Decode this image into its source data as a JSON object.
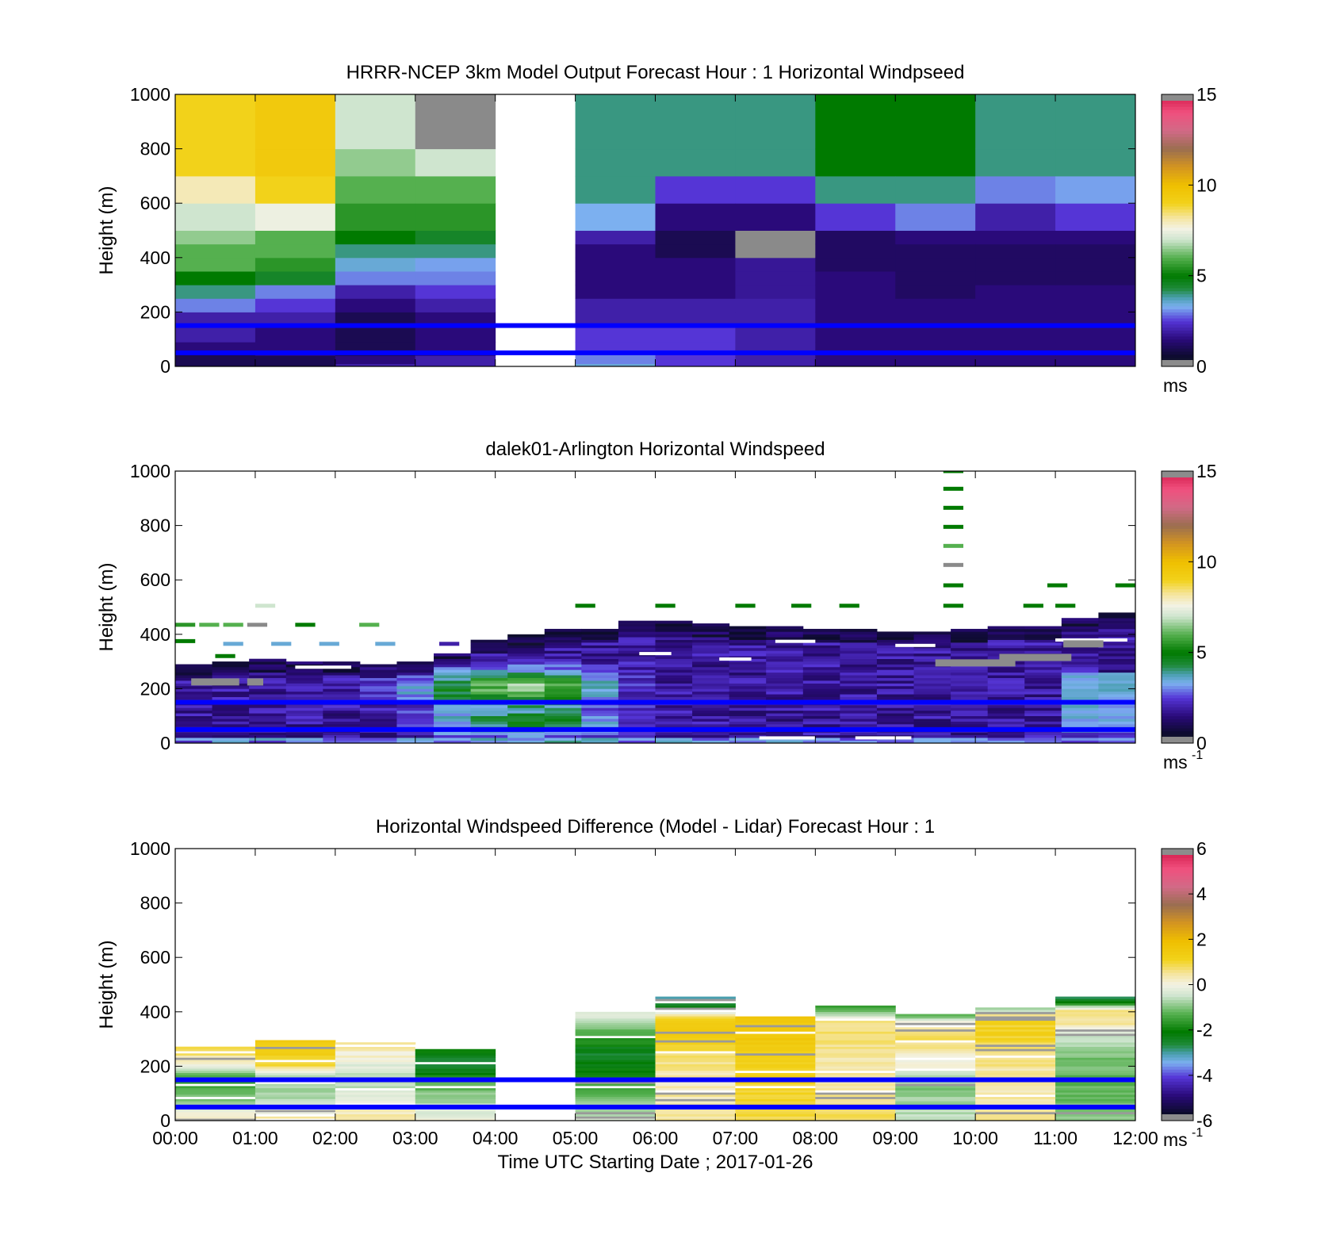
{
  "chart_data": [
    {
      "type": "heatmap",
      "title": "HRRR-NCEP 3km Model Output   Forecast Hour : 1 Horizontal Windpseed",
      "ylabel": "Height (m)",
      "ylim": [
        0,
        1000
      ],
      "yticks": [
        "0",
        "200",
        "400",
        "600",
        "800",
        "1000"
      ],
      "xlim": [
        0,
        12
      ],
      "colorbar": {
        "range": [
          0,
          15
        ],
        "ticks": [
          "0",
          "5",
          "10",
          "15"
        ],
        "units_label": "ms"
      },
      "reference_lines_m": [
        50,
        150
      ],
      "grid": "off",
      "kind": "blocks",
      "columns": [
        [
          1,
          1,
          1,
          1.5,
          2,
          2,
          3,
          4,
          5,
          6,
          6,
          6.5,
          7,
          8,
          9,
          9
        ],
        [
          1,
          1,
          1.5,
          1.5,
          1.5,
          2,
          2.5,
          3,
          4.5,
          5.5,
          6,
          6,
          7.5,
          9,
          9.5,
          9.5
        ],
        [
          2,
          1.5,
          1,
          1,
          1,
          1,
          1.5,
          2,
          3,
          3.5,
          4,
          5,
          5.5,
          6,
          6.5,
          7
        ],
        [
          2,
          2,
          1.5,
          1.5,
          1.5,
          1.5,
          2,
          2.5,
          3,
          3.2,
          4,
          4.5,
          5.5,
          6,
          7,
          -1
        ],
        [
          null,
          null,
          null,
          null,
          null,
          null,
          null,
          null,
          null,
          null,
          null,
          null,
          null,
          null,
          null,
          null
        ],
        [
          3.5,
          3,
          3,
          2.5,
          2.5,
          2,
          2,
          1.5,
          1.5,
          1.5,
          1.5,
          2,
          3.3,
          4,
          4,
          4
        ],
        [
          2.5,
          2.5,
          2.5,
          2.5,
          2.5,
          2,
          2,
          1.5,
          1.5,
          1.5,
          1,
          1,
          1.5,
          2.5,
          4,
          4
        ],
        [
          2,
          2,
          2,
          2,
          2,
          2,
          2,
          1.8,
          1.8,
          1.8,
          -1,
          -1,
          1.5,
          2.5,
          4,
          4
        ],
        [
          1.5,
          1.5,
          1.5,
          1.5,
          1.5,
          1.5,
          1.5,
          1.5,
          1.5,
          1.2,
          1.2,
          1.2,
          2.5,
          4,
          5,
          5
        ],
        [
          1.5,
          1.5,
          1.5,
          1.5,
          1.5,
          1.5,
          1.5,
          1.2,
          1.2,
          1.2,
          1.2,
          1.5,
          3,
          4,
          5,
          5
        ],
        [
          1.5,
          1.5,
          1.5,
          1.5,
          1.5,
          1.5,
          1.5,
          1.5,
          1.2,
          1.2,
          1.2,
          1.5,
          2,
          3,
          4,
          4
        ],
        [
          1.5,
          1.5,
          1.5,
          1.5,
          1.5,
          1.5,
          1.5,
          1.5,
          1.2,
          1.2,
          1.2,
          1.5,
          2.5,
          3.2,
          4,
          4
        ]
      ]
    },
    {
      "type": "heatmap",
      "title": "dalek01-Arlington  Horizontal Windspeed",
      "ylabel": "Height (m)",
      "ylim": [
        0,
        1000
      ],
      "yticks": [
        "0",
        "200",
        "400",
        "600",
        "800",
        "1000"
      ],
      "xlim": [
        0,
        12
      ],
      "colorbar": {
        "range": [
          0,
          15
        ],
        "ticks": [
          "0",
          "5",
          "10",
          "15"
        ],
        "units_label": "ms",
        "units_exp": "-1"
      },
      "reference_lines_m": [
        50,
        150
      ],
      "grid": "off",
      "kind": "lidar",
      "top_m": [
        290,
        300,
        310,
        300,
        300,
        290,
        300,
        330,
        380,
        400,
        420,
        420,
        450,
        450,
        440,
        430,
        430,
        420,
        420,
        410,
        410,
        420,
        430,
        430,
        460,
        480
      ],
      "core": [
        [
          0,
          0,
          0
        ],
        [
          0.5,
          0,
          0
        ],
        [
          1.0,
          0,
          0
        ],
        [
          1.5,
          0,
          0
        ],
        [
          2.0,
          0,
          0
        ],
        [
          2.5,
          0.5,
          0
        ],
        [
          3.0,
          1.5,
          0.8
        ],
        [
          3.5,
          3.0,
          1.8
        ],
        [
          4.0,
          4.5,
          2.5
        ],
        [
          4.5,
          5.0,
          3.0
        ],
        [
          5.0,
          4.0,
          2.5
        ],
        [
          5.5,
          1.0,
          0.8
        ],
        [
          6.0,
          0,
          0
        ],
        [
          12.0,
          0,
          0
        ]
      ],
      "sparse": [
        {
          "x": 0.0,
          "y": 435,
          "v": 5.5
        },
        {
          "x": 0.3,
          "y": 435,
          "v": 6
        },
        {
          "x": 0.6,
          "y": 435,
          "v": 6
        },
        {
          "x": 0.9,
          "y": 435,
          "v": -1
        },
        {
          "x": 0.0,
          "y": 375,
          "v": 5
        },
        {
          "x": 0.5,
          "y": 320,
          "v": 5
        },
        {
          "x": 1.5,
          "y": 435,
          "v": 5
        },
        {
          "x": 2.3,
          "y": 435,
          "v": 6
        },
        {
          "x": 1.0,
          "y": 505,
          "v": 7
        },
        {
          "x": 0.6,
          "y": 365,
          "v": 3.5
        },
        {
          "x": 1.2,
          "y": 365,
          "v": 3.5
        },
        {
          "x": 1.8,
          "y": 365,
          "v": 3.5
        },
        {
          "x": 2.5,
          "y": 365,
          "v": 3.5
        },
        {
          "x": 3.3,
          "y": 365,
          "v": 2
        },
        {
          "x": 5.0,
          "y": 505,
          "v": 5
        },
        {
          "x": 6.0,
          "y": 505,
          "v": 5
        },
        {
          "x": 7.0,
          "y": 505,
          "v": 5
        },
        {
          "x": 7.7,
          "y": 505,
          "v": 5
        },
        {
          "x": 8.3,
          "y": 505,
          "v": 5
        },
        {
          "x": 10.6,
          "y": 505,
          "v": 5
        },
        {
          "x": 11.0,
          "y": 505,
          "v": 5
        },
        {
          "x": 10.9,
          "y": 580,
          "v": 5
        },
        {
          "x": 11.75,
          "y": 580,
          "v": 5
        },
        {
          "x": 9.6,
          "y": 1000,
          "v": 5
        },
        {
          "x": 9.6,
          "y": 935,
          "v": 5
        },
        {
          "x": 9.6,
          "y": 865,
          "v": 5
        },
        {
          "x": 9.6,
          "y": 795,
          "v": 5
        },
        {
          "x": 9.6,
          "y": 725,
          "v": 6
        },
        {
          "x": 9.6,
          "y": 655,
          "v": -1
        },
        {
          "x": 9.6,
          "y": 580,
          "v": 5
        },
        {
          "x": 9.6,
          "y": 505,
          "v": 5
        }
      ],
      "gaps": [
        {
          "x0": 0.0,
          "x1": 0.5,
          "y": 350
        },
        {
          "x0": 1.5,
          "x1": 2.2,
          "y": 280
        },
        {
          "x0": 5.8,
          "x1": 6.2,
          "y": 330
        },
        {
          "x0": 6.8,
          "x1": 7.2,
          "y": 310
        },
        {
          "x0": 7.5,
          "x1": 8.0,
          "y": 375
        },
        {
          "x0": 9.0,
          "x1": 9.5,
          "y": 360
        },
        {
          "x0": 11.0,
          "x1": 11.9,
          "y": 380
        },
        {
          "x0": 7.3,
          "x1": 8.0,
          "y": 20
        },
        {
          "x0": 8.5,
          "x1": 9.2,
          "y": 20
        }
      ],
      "grays": [
        {
          "x0": 9.5,
          "x1": 10.5,
          "y": 300
        },
        {
          "x0": 10.3,
          "x1": 11.2,
          "y": 320
        },
        {
          "x0": 11.1,
          "x1": 11.6,
          "y": 370
        },
        {
          "x0": 0.2,
          "x1": 0.8,
          "y": 230
        },
        {
          "x0": 0.9,
          "x1": 1.1,
          "y": 230
        }
      ]
    },
    {
      "type": "heatmap",
      "title": "Horizontal Windspeed Difference (Model - Lidar) Forecast Hour : 1",
      "xlabel": "Time UTC  Starting Date ; 2017-01-26",
      "ylabel": "Height (m)",
      "ylim": [
        0,
        1000
      ],
      "yticks": [
        "0",
        "200",
        "400",
        "600",
        "800",
        "1000"
      ],
      "xlim": [
        0,
        12
      ],
      "xticks": [
        "00:00",
        "01:00",
        "02:00",
        "03:00",
        "04:00",
        "05:00",
        "06:00",
        "07:00",
        "08:00",
        "09:00",
        "10:00",
        "11:00",
        "12:00"
      ],
      "colorbar": {
        "range": [
          -6,
          6
        ],
        "ticks": [
          "-6",
          "-4",
          "-2",
          "0",
          "2",
          "4",
          "6"
        ],
        "units_label": "ms",
        "units_exp": "-1"
      },
      "reference_lines_m": [
        50,
        150
      ],
      "grid": "off",
      "kind": "diff",
      "columns": [
        {
          "top": 265,
          "profile": [
            [
              0,
              0.5
            ],
            [
              60,
              -1
            ],
            [
              150,
              -1.5
            ],
            [
              200,
              0
            ],
            [
              265,
              1
            ]
          ]
        },
        {
          "top": 290,
          "profile": [
            [
              0,
              0.5
            ],
            [
              60,
              -0.5
            ],
            [
              150,
              -1
            ],
            [
              200,
              1
            ],
            [
              290,
              1.5
            ]
          ]
        },
        {
          "top": 285,
          "profile": [
            [
              0,
              0.5
            ],
            [
              70,
              0
            ],
            [
              150,
              -0.8
            ],
            [
              220,
              0
            ],
            [
              285,
              0.5
            ]
          ]
        },
        {
          "top": 280,
          "profile": [
            [
              0,
              0
            ],
            [
              150,
              -1.5
            ],
            [
              200,
              -2.8
            ],
            [
              280,
              -1.5
            ]
          ]
        },
        {
          "top": 0,
          "profile": []
        },
        {
          "top": 395,
          "profile": [
            [
              0,
              -0.5
            ],
            [
              80,
              -1
            ],
            [
              160,
              -2
            ],
            [
              250,
              -2.5
            ],
            [
              330,
              -1
            ],
            [
              395,
              -0.2
            ]
          ]
        },
        {
          "top": 450,
          "profile": [
            [
              0,
              0.5
            ],
            [
              150,
              0.3
            ],
            [
              250,
              0.8
            ],
            [
              330,
              1.5
            ],
            [
              380,
              1
            ],
            [
              420,
              -2.5
            ],
            [
              450,
              -3
            ]
          ]
        },
        {
          "top": 390,
          "profile": [
            [
              0,
              1
            ],
            [
              200,
              1.2
            ],
            [
              300,
              1.5
            ],
            [
              390,
              1.5
            ]
          ]
        },
        {
          "top": 425,
          "profile": [
            [
              0,
              0.8
            ],
            [
              120,
              0.5
            ],
            [
              200,
              0.3
            ],
            [
              300,
              0.8
            ],
            [
              360,
              0.5
            ],
            [
              425,
              -2
            ]
          ]
        },
        {
          "top": 385,
          "profile": [
            [
              0,
              -0.5
            ],
            [
              120,
              -1
            ],
            [
              200,
              0
            ],
            [
              300,
              0.8
            ],
            [
              350,
              0.5
            ],
            [
              385,
              -1.5
            ]
          ]
        },
        {
          "top": 410,
          "profile": [
            [
              0,
              0.5
            ],
            [
              150,
              0.3
            ],
            [
              250,
              0.8
            ],
            [
              330,
              1.2
            ],
            [
              380,
              1
            ],
            [
              410,
              -1
            ]
          ]
        },
        {
          "top": 450,
          "profile": [
            [
              0,
              -1
            ],
            [
              150,
              -1.2
            ],
            [
              250,
              -1
            ],
            [
              300,
              -0.5
            ],
            [
              360,
              0.5
            ],
            [
              400,
              0.8
            ],
            [
              430,
              -2
            ],
            [
              450,
              -2.8
            ]
          ]
        }
      ]
    }
  ]
}
